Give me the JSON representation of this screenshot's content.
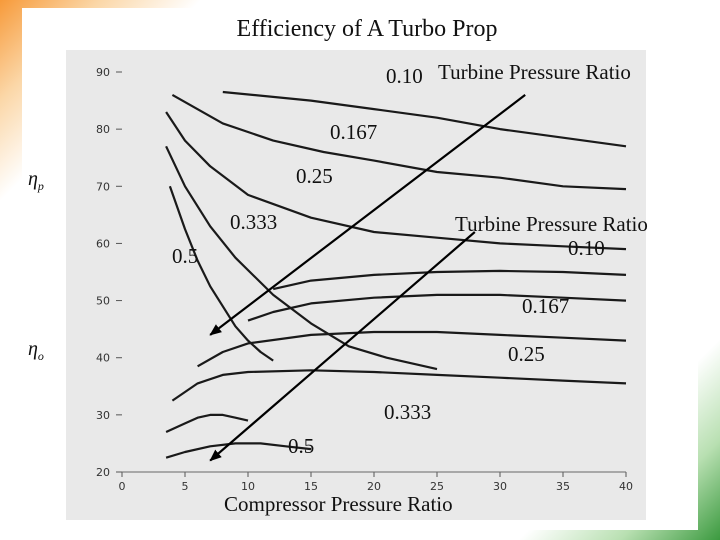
{
  "page": {
    "title": "Efficiency of A Turbo Prop",
    "eta_p": {
      "symbol": "η",
      "sub": "p"
    },
    "eta_o": {
      "symbol": "η",
      "sub": "o"
    },
    "turbine_label_top": "Turbine Pressure Ratio",
    "turbine_label_right": "Turbine Pressure Ratio",
    "xlabel": "Compressor Pressure Ratio",
    "top_ratios": [
      "0.10",
      "0.167",
      "0.25",
      "0.333",
      "0.5"
    ],
    "bottom_ratios": [
      "0.10",
      "0.167",
      "0.25",
      "0.333",
      "0.5"
    ]
  },
  "chart_data": {
    "type": "line",
    "title": "Efficiency of A Turbo Prop",
    "xlabel": "Compressor Pressure Ratio",
    "xlim": [
      0,
      40
    ],
    "ylim": [
      20,
      90
    ],
    "xticks": [
      0,
      5,
      10,
      15,
      20,
      25,
      30,
      35,
      40
    ],
    "yticks": [
      20,
      30,
      40,
      50,
      60,
      70,
      80,
      90
    ],
    "propulsive_efficiency": [
      {
        "name": "0.10",
        "x": [
          8,
          15,
          20,
          25,
          30,
          35,
          40
        ],
        "y": [
          86.5,
          85.0,
          83.5,
          82.0,
          80.0,
          78.5,
          77.0
        ]
      },
      {
        "name": "0.167",
        "x": [
          4,
          8,
          12,
          16,
          20,
          25,
          30,
          35,
          40
        ],
        "y": [
          86.0,
          81.0,
          78.0,
          76.0,
          74.5,
          72.5,
          71.5,
          70.0,
          69.5
        ]
      },
      {
        "name": "0.25",
        "x": [
          3.5,
          5,
          7,
          10,
          15,
          20,
          25,
          30,
          35,
          40
        ],
        "y": [
          83.0,
          78.0,
          73.5,
          68.5,
          64.5,
          62.0,
          61.0,
          60.0,
          59.5,
          59.0
        ]
      },
      {
        "name": "0.333",
        "x": [
          3.5,
          5,
          7,
          9,
          12,
          15,
          18,
          21,
          25
        ],
        "y": [
          77.0,
          70.0,
          63.0,
          57.5,
          51.0,
          46.0,
          42.0,
          40.0,
          38.0
        ]
      },
      {
        "name": "0.5",
        "x": [
          3.8,
          5,
          6,
          7,
          8,
          9,
          10,
          11,
          12
        ],
        "y": [
          70.0,
          62.5,
          57.0,
          52.5,
          49.0,
          45.5,
          43.0,
          41.0,
          39.5
        ]
      }
    ],
    "overall_efficiency": [
      {
        "name": "0.10",
        "x": [
          12,
          15,
          20,
          25,
          30,
          35,
          40
        ],
        "y": [
          52.0,
          53.5,
          54.5,
          55.0,
          55.2,
          55.0,
          54.5
        ]
      },
      {
        "name": "0.167",
        "x": [
          10,
          12,
          15,
          20,
          25,
          30,
          35,
          40
        ],
        "y": [
          46.5,
          48.0,
          49.5,
          50.5,
          51.0,
          51.0,
          50.5,
          50.0
        ]
      },
      {
        "name": "0.25",
        "x": [
          6,
          8,
          10,
          15,
          20,
          25,
          30,
          35,
          40
        ],
        "y": [
          38.5,
          41.0,
          42.5,
          44.0,
          44.5,
          44.5,
          44.0,
          43.5,
          43.0
        ]
      },
      {
        "name": "0.333",
        "x": [
          4,
          6,
          8,
          10,
          15,
          20,
          25,
          30,
          35,
          40
        ],
        "y": [
          32.5,
          35.5,
          37.0,
          37.5,
          37.8,
          37.5,
          37.0,
          36.5,
          36.0,
          35.5
        ]
      },
      {
        "name": "0.5",
        "x": [
          3.5,
          5,
          6,
          7,
          8,
          9,
          10
        ],
        "y": [
          27.0,
          28.5,
          29.5,
          30.0,
          30.0,
          29.5,
          29.0
        ]
      },
      {
        "name": "0.5-low",
        "x": [
          3.5,
          5,
          7,
          9,
          11,
          13,
          15
        ],
        "y": [
          22.5,
          23.5,
          24.5,
          25.0,
          25.0,
          24.5,
          24.0
        ]
      }
    ],
    "arrows": [
      {
        "from": [
          32,
          86
        ],
        "to": [
          7,
          44
        ]
      },
      {
        "from": [
          28,
          62
        ],
        "to": [
          7,
          22
        ]
      }
    ]
  }
}
